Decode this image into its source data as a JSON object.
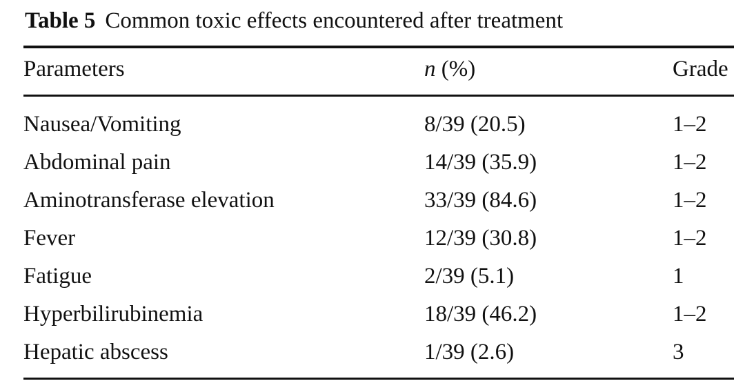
{
  "table": {
    "label": "Table 5",
    "title": "Common toxic effects encountered after treatment",
    "headers": {
      "parameters": "Parameters",
      "n_symbol": "n",
      "n_unit": " (%)",
      "grade": "Grade"
    },
    "rows": [
      {
        "parameter": "Nausea/Vomiting",
        "n_pct": "8/39 (20.5)",
        "grade": "1–2"
      },
      {
        "parameter": "Abdominal pain",
        "n_pct": "14/39 (35.9)",
        "grade": "1–2"
      },
      {
        "parameter": "Aminotransferase elevation",
        "n_pct": "33/39 (84.6)",
        "grade": "1–2"
      },
      {
        "parameter": "Fever",
        "n_pct": "12/39 (30.8)",
        "grade": "1–2"
      },
      {
        "parameter": "Fatigue",
        "n_pct": "2/39 (5.1)",
        "grade": "1"
      },
      {
        "parameter": "Hyperbilirubinemia",
        "n_pct": "18/39 (46.2)",
        "grade": "1–2"
      },
      {
        "parameter": "Hepatic abscess",
        "n_pct": "1/39 (2.6)",
        "grade": "3"
      }
    ]
  }
}
